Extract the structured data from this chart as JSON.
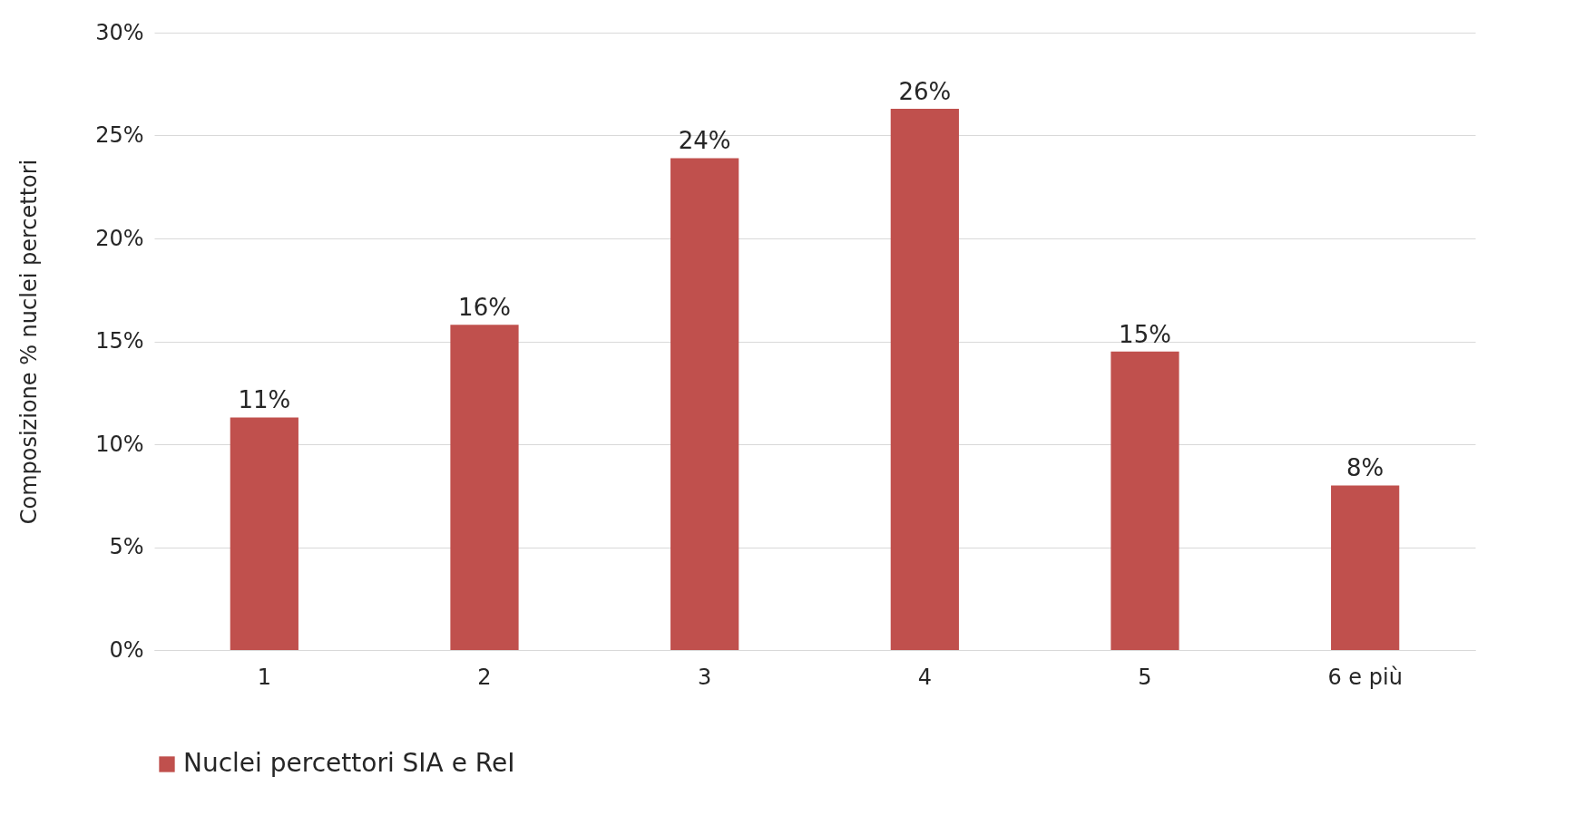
{
  "chart_data": {
    "type": "bar",
    "ylabel": "Composizione % nuclei percettori",
    "categories": [
      "1",
      "2",
      "3",
      "4",
      "5",
      "6 e più"
    ],
    "series": [
      {
        "name": "Nuclei percettori SIA e ReI",
        "color": "#c0504d",
        "values": [
          11.3,
          15.8,
          23.9,
          26.3,
          14.5,
          8.0
        ],
        "value_labels": [
          "11%",
          "16%",
          "24%",
          "26%",
          "15%",
          "8%"
        ]
      }
    ],
    "ylim": [
      0,
      30
    ],
    "yticks": [
      {
        "value": 0,
        "label": "0%"
      },
      {
        "value": 5,
        "label": "5%"
      },
      {
        "value": 10,
        "label": "10%"
      },
      {
        "value": 15,
        "label": "15%"
      },
      {
        "value": 20,
        "label": "20%"
      },
      {
        "value": 25,
        "label": "25%"
      },
      {
        "value": 30,
        "label": "30%"
      }
    ],
    "grid": "y",
    "legend": "bottom"
  }
}
